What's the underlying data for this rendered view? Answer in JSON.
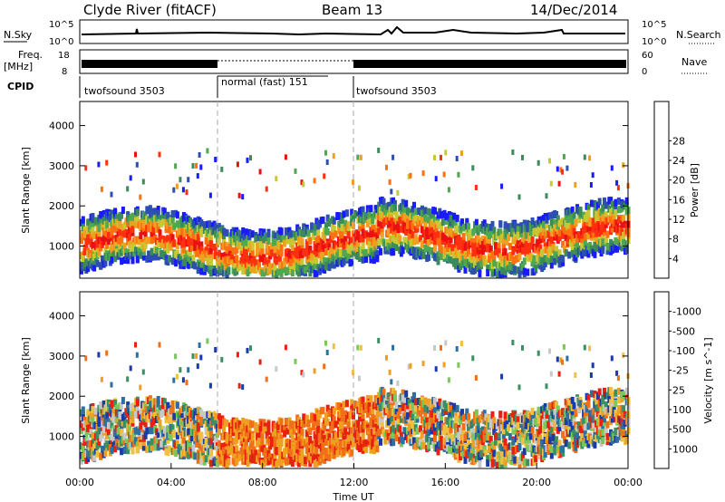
{
  "header": {
    "station": "Clyde River (fitACF)",
    "beam": "Beam 13",
    "date": "14/Dec/2014"
  },
  "noise_panel": {
    "left_label": "N.Sky",
    "left_ticks": [
      "10^5",
      "10^0"
    ],
    "right_ticks": [
      "10^5",
      "10^0"
    ],
    "right_label": "N.Search"
  },
  "freq_panel": {
    "left_label_1": "Freq.",
    "left_label_2": "[MHz]",
    "left_ticks": [
      "18",
      "8"
    ],
    "right_ticks": [
      "60",
      "0"
    ],
    "right_label": "Nave"
  },
  "cpid": {
    "label": "CPID",
    "segments": [
      {
        "name": "twofsound 3503",
        "start": 0,
        "end": 6
      },
      {
        "name": "normal (fast) 151",
        "start": 6,
        "end": 12
      },
      {
        "name": "twofsound 3503",
        "start": 12,
        "end": 24
      }
    ]
  },
  "chart_data": [
    {
      "type": "heatmap",
      "title": "",
      "xlabel": "",
      "ylabel": "Slant Range [km]",
      "xlim": [
        0,
        24
      ],
      "ylim": [
        200,
        4600
      ],
      "yticks": [
        1000,
        2000,
        3000,
        4000
      ],
      "colorbar": {
        "label": "Power [dB]",
        "ticks": [
          "4",
          "8",
          "12",
          "16",
          "20",
          "24",
          "28"
        ],
        "colors": [
          "#1a1aff",
          "#2c4fb0",
          "#3b8b5a",
          "#4fa84f",
          "#c8c832",
          "#f0a020",
          "#ff7010",
          "#ff3010",
          "#e81010"
        ]
      }
    },
    {
      "type": "heatmap",
      "title": "",
      "xlabel": "Time UT",
      "ylabel": "Slant Range [km]",
      "xlim": [
        0,
        24
      ],
      "ylim": [
        200,
        4600
      ],
      "yticks": [
        1000,
        2000,
        3000,
        4000
      ],
      "xticks": [
        "00:00",
        "04:00",
        "08:00",
        "12:00",
        "16:00",
        "20:00",
        "00:00"
      ],
      "colorbar": {
        "label": "Velocity [m s^-1]",
        "ticks": [
          "1000",
          "500",
          "100",
          "25",
          "-25",
          "-100",
          "-500",
          "-1000"
        ],
        "colors": [
          "#1a3aa8",
          "#2e6fa0",
          "#3a9060",
          "#7ac85a",
          "#c8c8c8",
          "#f0c040",
          "#f0a020",
          "#f07018",
          "#e82010"
        ]
      }
    }
  ]
}
